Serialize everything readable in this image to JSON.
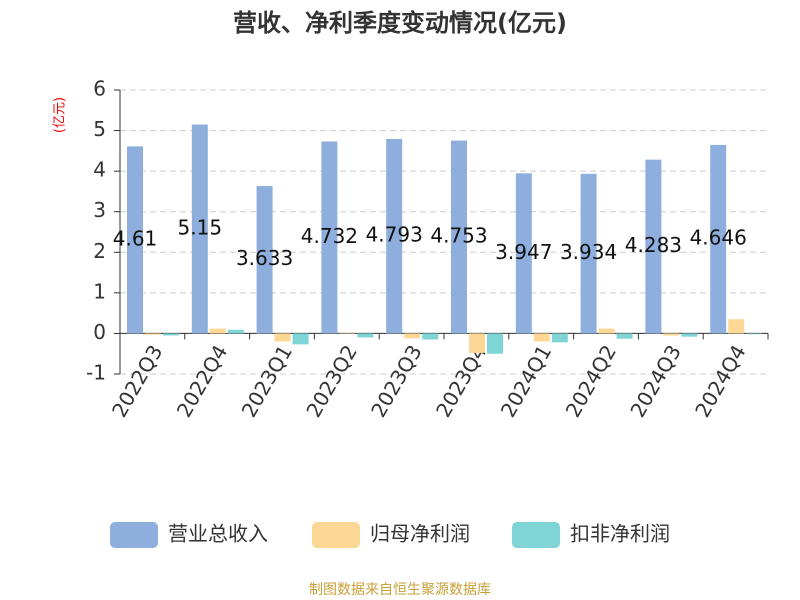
{
  "chart_data": {
    "type": "bar",
    "title": "营收、净利季度变动情况(亿元)",
    "y_label": "(亿元)",
    "source": "制图数据来自恒生聚源数据库",
    "categories": [
      "2022Q3",
      "2022Q4",
      "2023Q1",
      "2023Q2",
      "2023Q3",
      "2023Q4",
      "2024Q1",
      "2024Q2",
      "2024Q3",
      "2024Q4"
    ],
    "series": [
      {
        "name": "营业总收入",
        "color": "#8eaedd",
        "values": [
          4.61,
          5.15,
          3.633,
          4.732,
          4.793,
          4.753,
          3.947,
          3.934,
          4.283,
          4.646
        ]
      },
      {
        "name": "归母净利润",
        "color": "#fdd794",
        "values": [
          -0.03,
          0.12,
          -0.2,
          0.01,
          -0.12,
          -0.48,
          -0.2,
          0.12,
          -0.05,
          0.35
        ]
      },
      {
        "name": "扣非净利润",
        "color": "#7fd4d6",
        "values": [
          -0.05,
          0.09,
          -0.27,
          -0.1,
          -0.15,
          -0.5,
          -0.22,
          -0.13,
          -0.08,
          -0.02
        ]
      }
    ],
    "ylim": [
      -1,
      6
    ],
    "yticks": [
      -1,
      0,
      1,
      2,
      3,
      4,
      5,
      6
    ],
    "grid": true,
    "legend": "bottom"
  }
}
